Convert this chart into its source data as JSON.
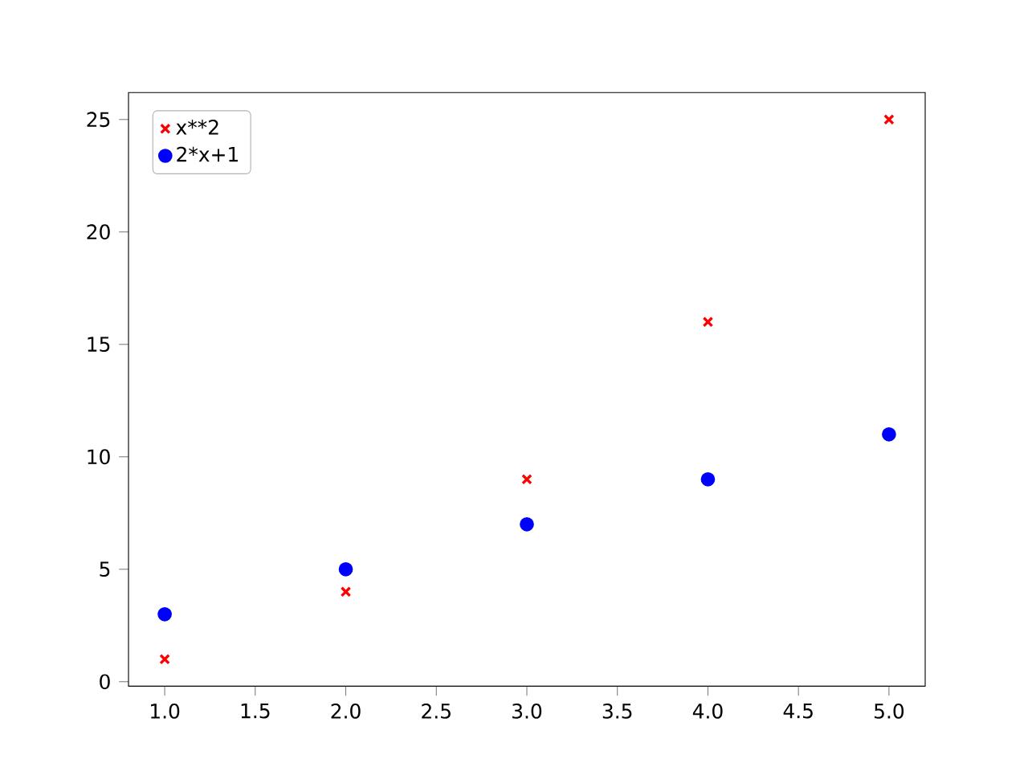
{
  "chart_data": {
    "type": "scatter",
    "x": [
      1,
      2,
      3,
      4,
      5
    ],
    "series": [
      {
        "name": "x**2",
        "color": "#ff0000",
        "marker": "cross",
        "values": [
          1,
          4,
          9,
          16,
          25
        ]
      },
      {
        "name": "2*x+1",
        "color": "#0000ff",
        "marker": "circle",
        "values": [
          3,
          5,
          7,
          9,
          11
        ]
      }
    ],
    "xlim": [
      0.8,
      5.2
    ],
    "ylim": [
      -0.2,
      26.2
    ],
    "xticks": [
      {
        "value": 1,
        "label": "1.0"
      },
      {
        "value": 1.5,
        "label": "1.5"
      },
      {
        "value": 2,
        "label": "2.0"
      },
      {
        "value": 2.5,
        "label": "2.5"
      },
      {
        "value": 3,
        "label": "3.0"
      },
      {
        "value": 3.5,
        "label": "3.5"
      },
      {
        "value": 4,
        "label": "4.0"
      },
      {
        "value": 4.5,
        "label": "4.5"
      },
      {
        "value": 5,
        "label": "5.0"
      }
    ],
    "yticks": [
      0,
      5,
      10,
      15,
      20,
      25
    ],
    "legend": "top left",
    "grid": false
  }
}
